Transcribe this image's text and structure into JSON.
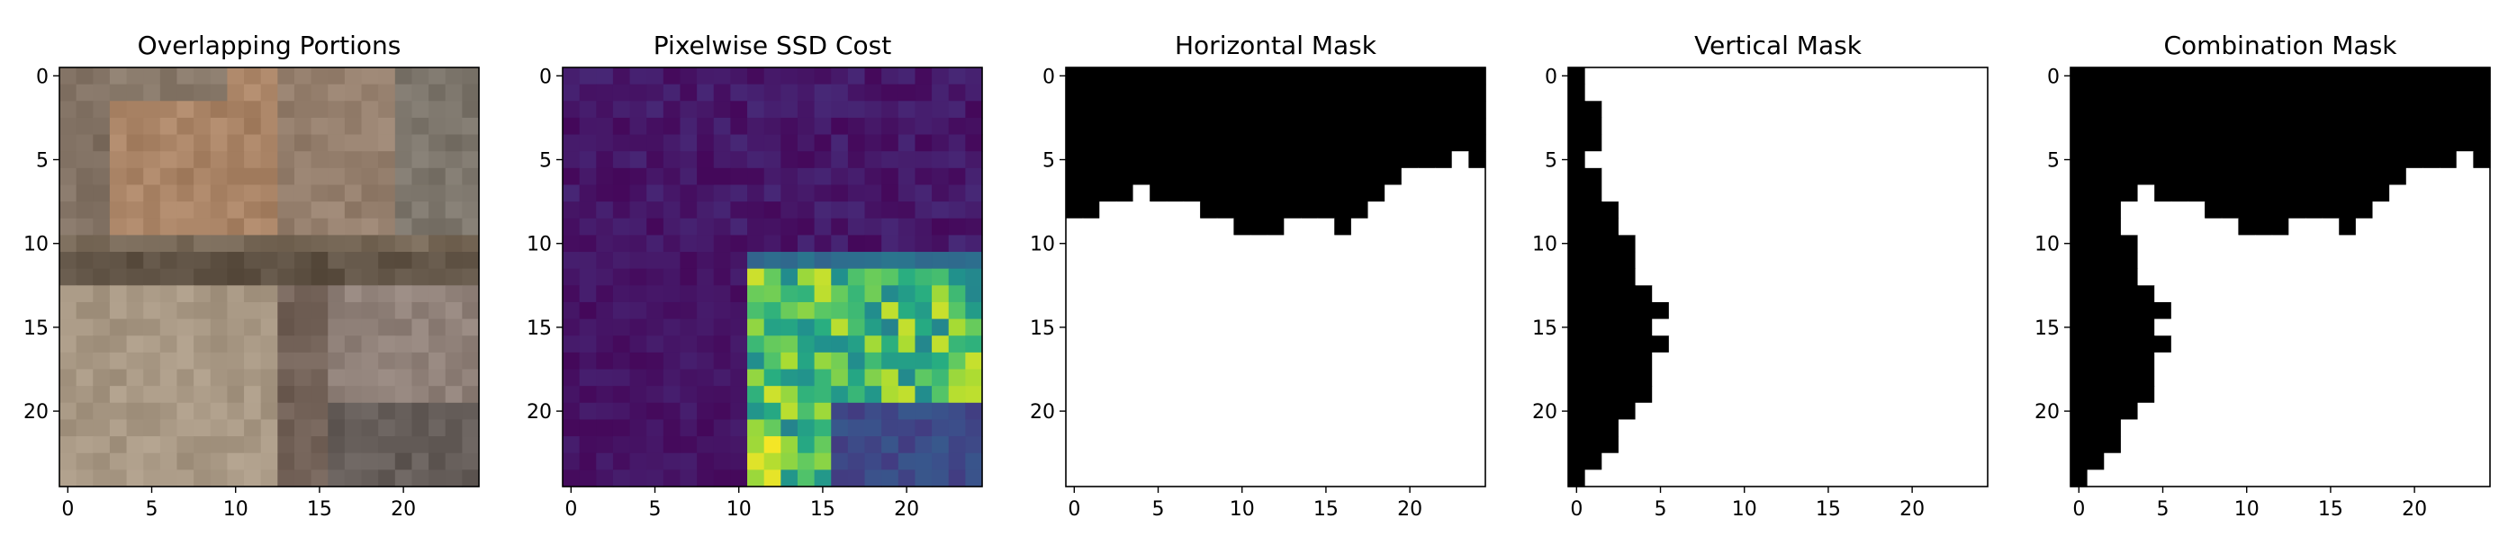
{
  "figure": {
    "panels": [
      {
        "id": "overlap",
        "title": "Overlapping Portions",
        "kind": "photo"
      },
      {
        "id": "ssd",
        "title": "Pixelwise SSD Cost",
        "kind": "heatmap"
      },
      {
        "id": "hmask",
        "title": "Horizontal Mask",
        "kind": "mask"
      },
      {
        "id": "vmask",
        "title": "Vertical Mask",
        "kind": "mask"
      },
      {
        "id": "cmask",
        "title": "Combination Mask",
        "kind": "mask"
      }
    ],
    "x_ticks": [
      "0",
      "5",
      "10",
      "15",
      "20"
    ],
    "y_ticks": [
      "0",
      "5",
      "10",
      "15",
      "20"
    ]
  },
  "chart_data": {
    "type": "heatmap",
    "grid_size": 25,
    "xlim": [
      -0.5,
      24.5
    ],
    "ylim": [
      24.5,
      -0.5
    ],
    "horizontal_mask_boundary": [
      9,
      9,
      8,
      8,
      7,
      8,
      8,
      8,
      9,
      9,
      10,
      10,
      10,
      9,
      9,
      9,
      10,
      9,
      8,
      7,
      6,
      6,
      6,
      5,
      6
    ],
    "vertical_mask_boundary": [
      1,
      1,
      2,
      2,
      2,
      1,
      2,
      2,
      3,
      3,
      4,
      4,
      4,
      5,
      6,
      5,
      6,
      5,
      5,
      5,
      4,
      3,
      3,
      2,
      1
    ],
    "colors": {
      "mask_black": "#000000",
      "mask_white": "#ffffff",
      "viridis_low": "#440154",
      "viridis_high": "#fde725"
    }
  }
}
